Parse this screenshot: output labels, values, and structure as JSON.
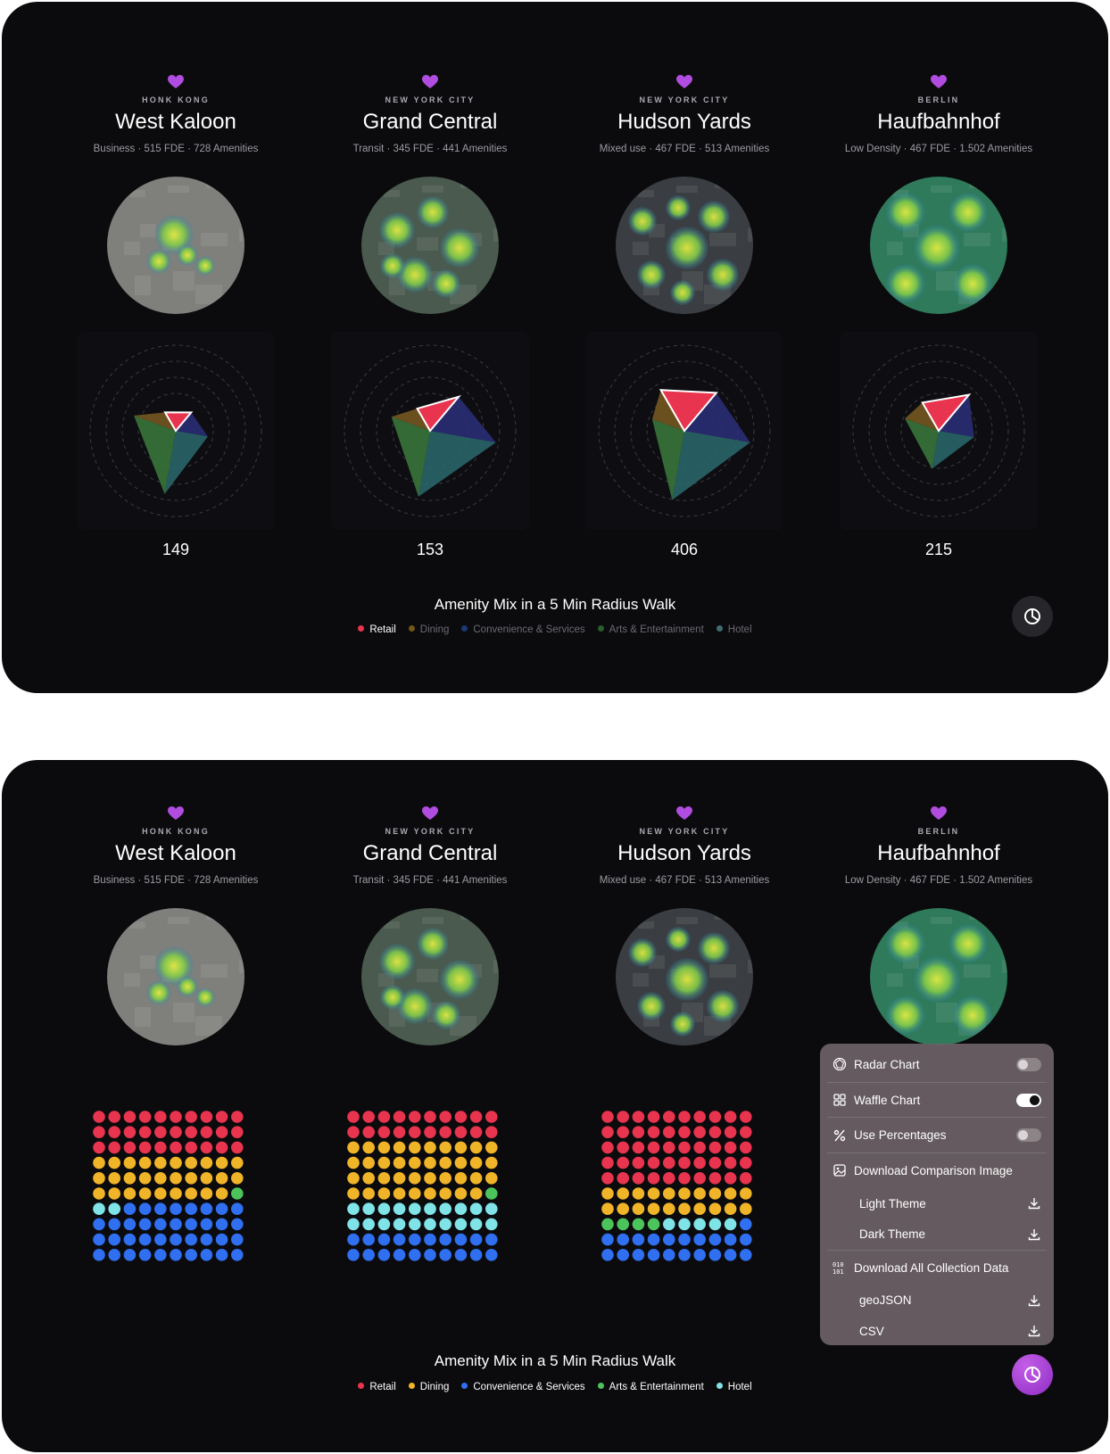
{
  "locations": [
    {
      "city": "HONK KONG",
      "name": "West Kaloon",
      "meta": "Business · 515 FDE · 728 Amenities",
      "count": "149"
    },
    {
      "city": "NEW YORK CITY",
      "name": "Grand Central",
      "meta": "Transit · 345 FDE · 441 Amenities",
      "count": "153"
    },
    {
      "city": "NEW YORK CITY",
      "name": "Hudson Yards",
      "meta": "Mixed use · 467 FDE · 513 Amenities",
      "count": "406"
    },
    {
      "city": "BERLIN",
      "name": "Haufbahnhof",
      "meta": "Low Density · 467 FDE · 1.502 Amenities",
      "count": "215"
    }
  ],
  "chart_title": "Amenity Mix in a 5 Min Radius Walk",
  "legend": [
    {
      "label": "Retail",
      "color": "#e8344e"
    },
    {
      "label": "Dining",
      "color": "#f0b429"
    },
    {
      "label": "Convenience & Services",
      "color": "#2f6ff0"
    },
    {
      "label": "Arts & Entertainment",
      "color": "#4cc45c"
    },
    {
      "label": "Hotel",
      "color": "#7fe3e8"
    }
  ],
  "legend_top_active": "Retail",
  "menu": {
    "radar": "Radar Chart",
    "waffle": "Waffle Chart",
    "percent": "Use Percentages",
    "download_image": "Download Comparison Image",
    "light": "Light Theme",
    "dark": "Dark Theme",
    "download_data": "Download All Collection Data",
    "geojson": "geoJSON",
    "csv": "CSV",
    "toggles": {
      "radar": false,
      "waffle": true,
      "percent": false
    }
  },
  "chart_data": [
    {
      "type": "radar",
      "title": "Amenity Mix in a 5 Min Radius Walk",
      "categories": [
        "Retail",
        "Convenience & Services",
        "Hotel",
        "Arts & Entertainment",
        "Dining"
      ],
      "series": [
        {
          "name": "West Kaloon",
          "values": [
            0.25,
            0.28,
            0.38,
            0.75,
            0.52
          ]
        },
        {
          "name": "Grand Central",
          "values": [
            0.3,
            0.52,
            0.78,
            0.78,
            0.48
          ]
        },
        {
          "name": "Hudson Yards",
          "values": [
            0.55,
            0.58,
            0.78,
            0.82,
            0.4
          ]
        },
        {
          "name": "Haufbahnhof",
          "values": [
            0.38,
            0.55,
            0.42,
            0.45,
            0.42
          ]
        }
      ],
      "totals": [
        149,
        153,
        406,
        215
      ]
    },
    {
      "type": "waffle",
      "title": "Amenity Mix in a 5 Min Radius Walk",
      "categories": [
        "Retail",
        "Dining",
        "Arts & Entertainment",
        "Hotel",
        "Convenience & Services"
      ],
      "series": [
        {
          "name": "West Kaloon",
          "values": [
            30,
            29,
            1,
            2,
            38
          ]
        },
        {
          "name": "Grand Central",
          "values": [
            20,
            39,
            1,
            20,
            20
          ]
        },
        {
          "name": "Hudson Yards",
          "values": [
            50,
            20,
            4,
            5,
            21
          ]
        }
      ],
      "grid": [
        10,
        10
      ]
    }
  ]
}
